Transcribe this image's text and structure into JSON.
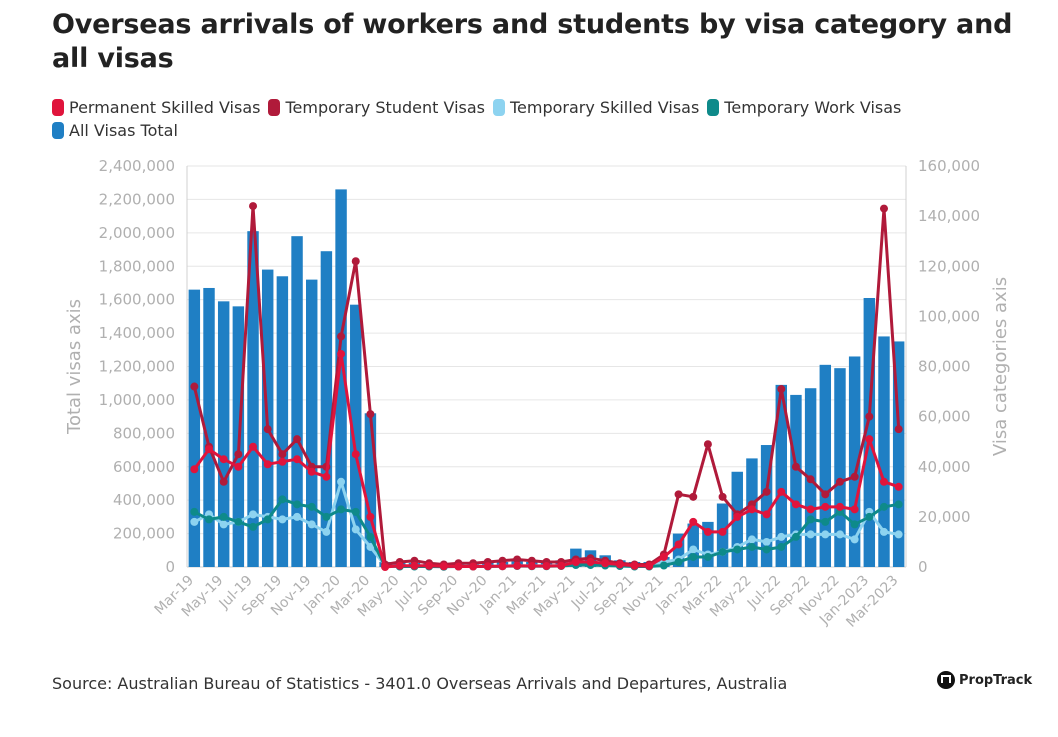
{
  "title": "Overseas arrivals of workers and students by visa category and all visas",
  "source": "Source: Australian Bureau of Statistics - 3401.0 Overseas Arrivals and Departures, Australia",
  "brand": "PropTrack",
  "colors": {
    "permanent_skilled": "#e0143c",
    "temporary_student": "#b01a3a",
    "temporary_skilled": "#8dd3f0",
    "temporary_work": "#0e8a8a",
    "all_visas": "#1f7fc4",
    "grid": "#e6e6e6",
    "axis_text": "#b0b0b0"
  },
  "chart_data": {
    "type": "bar",
    "title": "Overseas arrivals of workers and students by visa category and all visas",
    "legend_position": "top-left",
    "grid": true,
    "ylabel": "Total visas axis",
    "y2label": "Visa categories axis",
    "ylim": [
      0,
      2400000
    ],
    "y2lim": [
      0,
      160000
    ],
    "yticks": [
      "0",
      "200,000",
      "400,000",
      "600,000",
      "800,000",
      "1,000,000",
      "1,200,000",
      "1,400,000",
      "1,600,000",
      "1,800,000",
      "2,000,000",
      "2,200,000",
      "2,400,000"
    ],
    "y2ticks": [
      "0",
      "20,000",
      "40,000",
      "60,000",
      "80,000",
      "100,000",
      "120,000",
      "140,000",
      "160,000"
    ],
    "categories": [
      "Mar-19",
      "Apr-19",
      "May-19",
      "Jun-19",
      "Jul-19",
      "Aug-19",
      "Sep-19",
      "Oct-19",
      "Nov-19",
      "Dec-19",
      "Jan-20",
      "Feb-20",
      "Mar-20",
      "Apr-20",
      "May-20",
      "Jun-20",
      "Jul-20",
      "Aug-20",
      "Sep-20",
      "Oct-20",
      "Nov-20",
      "Dec-20",
      "Jan-21",
      "Feb-21",
      "Mar-21",
      "Apr-21",
      "May-21",
      "Jun-21",
      "Jul-21",
      "Aug-21",
      "Sep-21",
      "Oct-21",
      "Nov-21",
      "Dec-21",
      "Jan-22",
      "Feb-22",
      "Mar-22",
      "Apr-22",
      "May-22",
      "Jun-22",
      "Jul-22",
      "Aug-22",
      "Sep-22",
      "Oct-22",
      "Nov-22",
      "Dec-22",
      "Jan-2023",
      "Feb-23",
      "Mar-2023"
    ],
    "xtick_labels": [
      "Mar-19",
      "May-19",
      "Jul-19",
      "Sep-19",
      "Nov-19",
      "Jan-20",
      "Mar-20",
      "May-20",
      "Jul-20",
      "Sep-20",
      "Nov-20",
      "Jan-21",
      "Mar-21",
      "May-21",
      "Jul-21",
      "Sep-21",
      "Nov-21",
      "Jan-22",
      "Mar-22",
      "May-22",
      "Jul-22",
      "Sep-22",
      "Nov-22",
      "Jan-2023",
      "Mar-2023"
    ],
    "series": [
      {
        "name": "Permanent Skilled Visas",
        "key": "permanent_skilled",
        "type": "line",
        "axis": "y2",
        "values": [
          39000,
          47000,
          43000,
          40000,
          48000,
          41000,
          42000,
          43000,
          38000,
          36000,
          85000,
          45000,
          20000,
          0,
          500,
          500,
          500,
          300,
          200,
          200,
          300,
          300,
          500,
          400,
          400,
          500,
          2000,
          2000,
          1500,
          1000,
          500,
          400,
          4000,
          9000,
          18000,
          14000,
          14000,
          20000,
          23000,
          21000,
          30000,
          25000,
          23000,
          24000,
          24000,
          23000,
          51000,
          34000,
          32000
        ]
      },
      {
        "name": "Temporary Student Visas",
        "key": "temporary_student",
        "type": "line",
        "axis": "y2",
        "values": [
          72000,
          48000,
          34000,
          45000,
          144000,
          55000,
          45000,
          51000,
          40000,
          40000,
          92000,
          122000,
          61000,
          1000,
          2000,
          2500,
          1500,
          1000,
          1500,
          1500,
          2000,
          2500,
          3000,
          2500,
          2000,
          2000,
          3000,
          3500,
          2500,
          1500,
          1000,
          1000,
          5000,
          29000,
          28000,
          49000,
          28000,
          21000,
          25000,
          30000,
          71000,
          40000,
          35000,
          29000,
          34000,
          36000,
          60000,
          143000,
          55000
        ]
      },
      {
        "name": "Temporary Skilled Visas",
        "key": "temporary_skilled",
        "type": "line",
        "axis": "y2",
        "values": [
          18000,
          21000,
          17000,
          18000,
          21000,
          20000,
          19000,
          20000,
          17000,
          14000,
          34000,
          15000,
          8000,
          500,
          300,
          300,
          300,
          300,
          300,
          300,
          300,
          400,
          500,
          500,
          500,
          500,
          2000,
          1000,
          1000,
          800,
          400,
          400,
          2000,
          3000,
          7000,
          5000,
          6000,
          8000,
          11000,
          10000,
          12000,
          13000,
          13000,
          13000,
          13000,
          11000,
          22000,
          14000,
          13000
        ]
      },
      {
        "name": "Temporary Work Visas",
        "key": "temporary_work",
        "type": "line",
        "axis": "y2",
        "values": [
          22000,
          19000,
          20000,
          18000,
          16000,
          19000,
          27000,
          25000,
          24000,
          20000,
          23000,
          22000,
          12000,
          300,
          200,
          200,
          200,
          100,
          200,
          200,
          200,
          300,
          400,
          300,
          300,
          400,
          800,
          800,
          600,
          400,
          200,
          200,
          600,
          2000,
          4000,
          4000,
          6000,
          7000,
          8000,
          7000,
          8000,
          12000,
          19000,
          18000,
          22000,
          17000,
          20000,
          24000,
          25000
        ]
      },
      {
        "name": "All Visas Total",
        "key": "all_visas",
        "type": "bar",
        "axis": "y",
        "values": [
          1660000,
          1670000,
          1590000,
          1560000,
          2010000,
          1780000,
          1740000,
          1980000,
          1720000,
          1890000,
          2260000,
          1570000,
          920000,
          30000,
          25000,
          25000,
          20000,
          20000,
          20000,
          25000,
          25000,
          30000,
          35000,
          30000,
          35000,
          40000,
          110000,
          100000,
          70000,
          40000,
          30000,
          30000,
          60000,
          200000,
          260000,
          270000,
          380000,
          570000,
          650000,
          730000,
          1090000,
          1030000,
          1070000,
          1210000,
          1190000,
          1260000,
          1610000,
          1380000,
          1350000
        ]
      }
    ]
  }
}
